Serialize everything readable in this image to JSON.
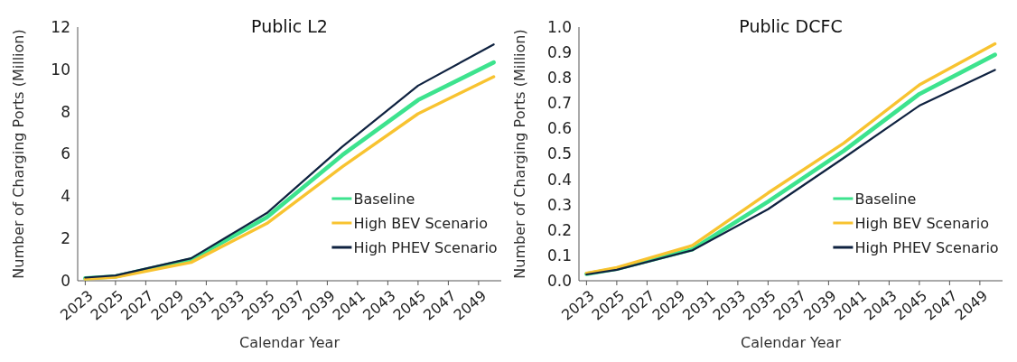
{
  "chart_data": [
    {
      "type": "line",
      "title": "Public L2",
      "xlabel": "Calendar Year",
      "ylabel": "Number of Charging Ports (Million)",
      "x": [
        2023,
        2025,
        2030,
        2035,
        2040,
        2045,
        2050
      ],
      "xlim": [
        2022.5,
        2050.5
      ],
      "xticks": [
        2023,
        2025,
        2027,
        2029,
        2031,
        2033,
        2035,
        2037,
        2039,
        2041,
        2043,
        2045,
        2047,
        2049
      ],
      "ylim": [
        0,
        12
      ],
      "yticks": [
        0,
        2,
        4,
        6,
        8,
        10,
        12
      ],
      "grid": false,
      "legend": "bottom right",
      "series": [
        {
          "name": "Baseline",
          "color": "#3de38e",
          "values": [
            0.12,
            0.2,
            1.0,
            3.0,
            5.95,
            8.55,
            10.33
          ]
        },
        {
          "name": "High BEV Scenario",
          "color": "#f8c330",
          "values": [
            0.08,
            0.17,
            0.87,
            2.71,
            5.4,
            7.9,
            9.65
          ]
        },
        {
          "name": "High PHEV Scenario",
          "color": "#0f2240",
          "values": [
            0.15,
            0.25,
            1.06,
            3.2,
            6.35,
            9.23,
            11.18
          ]
        }
      ]
    },
    {
      "type": "line",
      "title": "Public DCFC",
      "xlabel": "Calendar Year",
      "ylabel": "Number of Charging Ports (Million)",
      "x": [
        2023,
        2025,
        2030,
        2035,
        2040,
        2045,
        2050
      ],
      "xlim": [
        2022.5,
        2050.5
      ],
      "xticks": [
        2023,
        2025,
        2027,
        2029,
        2031,
        2033,
        2035,
        2037,
        2039,
        2041,
        2043,
        2045,
        2047,
        2049
      ],
      "ylim": [
        0,
        1.0
      ],
      "yticks": [
        {
          "value": 0,
          "label": "0.0"
        },
        0.1,
        0.2,
        0.3,
        0.4,
        0.5,
        0.6,
        0.7,
        0.8,
        0.9,
        {
          "value": 1,
          "label": "1.0"
        }
      ],
      "grid": false,
      "legend": "bottom right",
      "series": [
        {
          "name": "Baseline",
          "color": "#3de38e",
          "values": [
            0.027,
            0.047,
            0.124,
            0.312,
            0.512,
            0.736,
            0.891
          ]
        },
        {
          "name": "High BEV Scenario",
          "color": "#f8c330",
          "values": [
            0.03,
            0.052,
            0.139,
            0.346,
            0.542,
            0.772,
            0.934
          ]
        },
        {
          "name": "High PHEV Scenario",
          "color": "#0f2240",
          "values": [
            0.025,
            0.043,
            0.12,
            0.282,
            0.484,
            0.69,
            0.831
          ]
        }
      ]
    }
  ]
}
